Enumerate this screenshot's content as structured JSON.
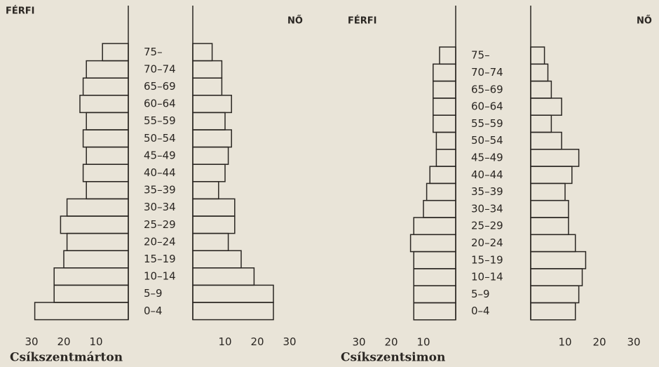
{
  "chart_data": [
    {
      "type": "pyramid",
      "title": "Csíkszentmárton",
      "categories": [
        "75–",
        "70–74",
        "65–69",
        "60–64",
        "55–59",
        "50–54",
        "45–49",
        "40–44",
        "35–39",
        "30–34",
        "25–29",
        "20–24",
        "15–19",
        "10–14",
        "5–9",
        "0–4"
      ],
      "series": [
        {
          "name": "FÉRFI",
          "color": "#2a2622",
          "values": [
            8,
            13,
            14,
            15,
            13,
            14,
            13,
            14,
            13,
            19,
            21,
            19,
            20,
            23,
            23,
            29
          ]
        },
        {
          "name": "NŐ",
          "color": "#2a2622",
          "values": [
            6,
            9,
            9,
            12,
            10,
            12,
            11,
            10,
            8,
            13,
            13,
            11,
            15,
            19,
            25,
            25
          ]
        }
      ],
      "xlim": [
        0,
        30
      ],
      "xticks_left": [
        30,
        20,
        10
      ],
      "xticks_right": [
        10,
        20,
        30
      ]
    },
    {
      "type": "pyramid",
      "title": "Csíkszentsimon",
      "categories": [
        "75–",
        "70–74",
        "65–69",
        "60–64",
        "55–59",
        "50–54",
        "45–49",
        "40–44",
        "35–39",
        "30–34",
        "25–29",
        "20–24",
        "15–19",
        "10–14",
        "5–9",
        "0–4"
      ],
      "series": [
        {
          "name": "FÉRFI",
          "color": "#2a2622",
          "values": [
            5,
            7,
            7,
            7,
            7,
            6,
            6,
            8,
            9,
            10,
            13,
            14,
            13,
            13,
            13,
            13
          ]
        },
        {
          "name": "NŐ",
          "color": "#2a2622",
          "values": [
            4,
            5,
            6,
            9,
            6,
            9,
            14,
            12,
            10,
            11,
            11,
            13,
            16,
            15,
            14,
            13
          ]
        }
      ],
      "xlim": [
        0,
        30
      ],
      "xticks_left": [
        30,
        20,
        10
      ],
      "xticks_right": [
        10,
        20,
        30
      ]
    }
  ]
}
